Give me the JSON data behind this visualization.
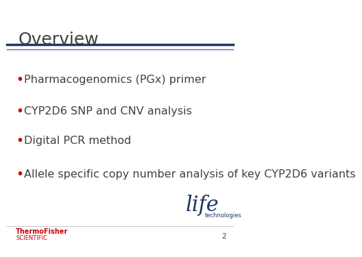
{
  "title": "Overview",
  "title_color": "#404040",
  "title_fontsize": 18,
  "background_color": "#ffffff",
  "bullet_color": "#cc0000",
  "bullet_text_color": "#404040",
  "bullet_fontsize": 11.5,
  "bullets": [
    "Pharmacogenomics (PGx) primer",
    "CYP2D6 SNP and CNV analysis",
    "Digital PCR method",
    "Allele specific copy number analysis of key CYP2D6 variants"
  ],
  "top_line_color1": "#1f3864",
  "top_line_color2": "#4472c4",
  "bottom_line_color": "#cccccc",
  "footer_brand_color": "#cc0000",
  "footer_brand_fontsize": 7,
  "page_number": "2",
  "page_number_color": "#404040",
  "logo_text": "life",
  "logo_subtext": "technologies",
  "logo_color": "#1f3864",
  "logo_fontsize": 22,
  "logo_subtext_fontsize": 6
}
